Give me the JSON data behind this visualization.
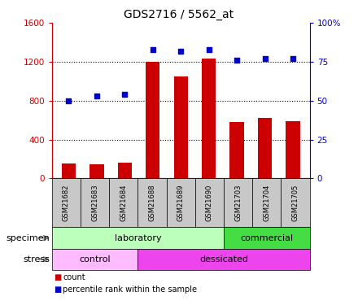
{
  "title": "GDS2716 / 5562_at",
  "samples": [
    "GSM21682",
    "GSM21683",
    "GSM21684",
    "GSM21688",
    "GSM21689",
    "GSM21690",
    "GSM21703",
    "GSM21704",
    "GSM21705"
  ],
  "counts": [
    150,
    145,
    160,
    1200,
    1050,
    1230,
    580,
    620,
    590
  ],
  "percentiles": [
    50,
    53,
    54,
    83,
    82,
    83,
    76,
    77,
    77
  ],
  "ylim_left": [
    0,
    1600
  ],
  "ylim_right": [
    0,
    100
  ],
  "yticks_left": [
    0,
    400,
    800,
    1200,
    1600
  ],
  "yticks_right": [
    0,
    25,
    50,
    75,
    100
  ],
  "ytick_labels_left": [
    "0",
    "400",
    "800",
    "1200",
    "1600"
  ],
  "ytick_labels_right": [
    "0",
    "25",
    "50",
    "75",
    "100%"
  ],
  "bar_color": "#cc0000",
  "dot_color": "#0000cc",
  "specimen_groups": [
    {
      "label": "laboratory",
      "start": 0,
      "end": 6,
      "color": "#bbffbb"
    },
    {
      "label": "commercial",
      "start": 6,
      "end": 9,
      "color": "#44dd44"
    }
  ],
  "stress_groups": [
    {
      "label": "control",
      "start": 0,
      "end": 3,
      "color": "#ffbbff"
    },
    {
      "label": "dessicated",
      "start": 3,
      "end": 9,
      "color": "#ee44ee"
    }
  ],
  "legend_count_color": "#cc0000",
  "legend_pct_color": "#0000cc",
  "grid_color": "#000000",
  "axis_left_color": "#cc0000",
  "axis_right_color": "#0000cc",
  "tick_bg_color": "#c8c8c8"
}
